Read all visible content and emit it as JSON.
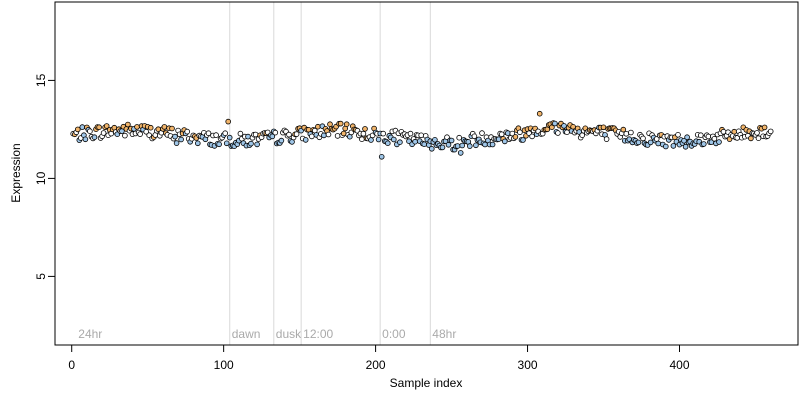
{
  "chart_data": {
    "type": "scatter",
    "title": "",
    "xlabel": "Sample index",
    "ylabel": "Expression",
    "xlim": [
      -11,
      478
    ],
    "ylim": [
      1.5,
      19.0
    ],
    "x_ticks": [
      0,
      100,
      200,
      300,
      400
    ],
    "y_ticks": [
      5,
      10,
      15
    ],
    "grid": false,
    "n_points": 460,
    "baseline": 12.2,
    "colors": {
      "neutral": "#ffffff",
      "low": "#9fc6e8",
      "high": "#f2b56b",
      "outline": "#000000",
      "marker_line": "#d9d9d9",
      "annotation_text": "#aaaaaa"
    },
    "annotations": [
      {
        "x": 3,
        "label": "24hr",
        "line": false
      },
      {
        "x": 104,
        "label": "dawn",
        "line": true
      },
      {
        "x": 133,
        "label": "dusk",
        "line": true
      },
      {
        "x": 151,
        "label": "12:00",
        "line": true
      },
      {
        "x": 203,
        "label": "0:00",
        "line": true
      },
      {
        "x": 236,
        "label": "48hr",
        "line": true
      }
    ],
    "highlights": [
      {
        "x": 103.1,
        "y": 12.9
      },
      {
        "x": 203.8,
        "y": 11.1
      },
      {
        "x": 256.4,
        "y": 11.3
      },
      {
        "x": 308.2,
        "y": 13.3
      },
      {
        "x": 68.6,
        "y": 11.8
      }
    ]
  }
}
